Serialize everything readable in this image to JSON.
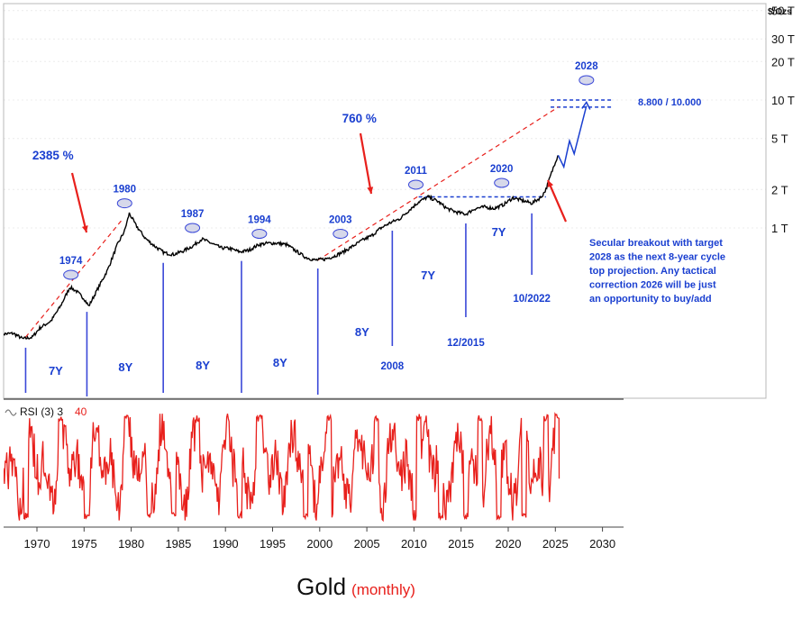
{
  "caption": {
    "title": "Gold",
    "subtitle": "(monthly)"
  },
  "chart_data": {
    "type": "line",
    "title": "Gold (monthly)",
    "unit_label": "$/Ozs",
    "x_ticks": [
      1970,
      1975,
      1980,
      1985,
      1990,
      1995,
      2000,
      2005,
      2010,
      2015,
      2020,
      2025,
      2030
    ],
    "y_scale": "log",
    "y_ticks": [
      {
        "value": 1000,
        "label": "1 T"
      },
      {
        "value": 2000,
        "label": "2 T"
      },
      {
        "value": 5000,
        "label": "5 T"
      },
      {
        "value": 10000,
        "label": "10 T"
      },
      {
        "value": 20000,
        "label": "20 T"
      },
      {
        "value": 30000,
        "label": "30 T"
      },
      {
        "value": 50000,
        "label": "50 T"
      }
    ],
    "price_series": {
      "color": "#000000",
      "points": [
        [
          1966.3,
          148
        ],
        [
          1967.5,
          150
        ],
        [
          1968.5,
          136
        ],
        [
          1969.5,
          140
        ],
        [
          1970.3,
          165
        ],
        [
          1971.5,
          188
        ],
        [
          1972.5,
          245
        ],
        [
          1973.5,
          345
        ],
        [
          1974.2,
          320
        ],
        [
          1975.0,
          280
        ],
        [
          1975.5,
          245
        ],
        [
          1976.5,
          340
        ],
        [
          1977.5,
          470
        ],
        [
          1978.5,
          730
        ],
        [
          1979.3,
          950
        ],
        [
          1979.8,
          1300
        ],
        [
          1980.5,
          1050
        ],
        [
          1981.5,
          830
        ],
        [
          1982.5,
          720
        ],
        [
          1983.5,
          640
        ],
        [
          1984.5,
          620
        ],
        [
          1985.5,
          660
        ],
        [
          1986.5,
          720
        ],
        [
          1987.5,
          820
        ],
        [
          1988.5,
          760
        ],
        [
          1989.5,
          700
        ],
        [
          1990.5,
          690
        ],
        [
          1991.5,
          650
        ],
        [
          1992.5,
          670
        ],
        [
          1993.5,
          740
        ],
        [
          1994.5,
          760
        ],
        [
          1995.5,
          760
        ],
        [
          1996.5,
          740
        ],
        [
          1997.5,
          660
        ],
        [
          1998.5,
          590
        ],
        [
          1999.5,
          560
        ],
        [
          2000.5,
          570
        ],
        [
          2001.5,
          600
        ],
        [
          2002.5,
          650
        ],
        [
          2003.5,
          720
        ],
        [
          2004.5,
          800
        ],
        [
          2005.5,
          870
        ],
        [
          2006.5,
          1000
        ],
        [
          2007.5,
          1100
        ],
        [
          2008.5,
          1180
        ],
        [
          2009.5,
          1380
        ],
        [
          2010.5,
          1600
        ],
        [
          2011.5,
          1750
        ],
        [
          2012.5,
          1620
        ],
        [
          2013.5,
          1420
        ],
        [
          2014.5,
          1330
        ],
        [
          2015.5,
          1280
        ],
        [
          2016.5,
          1420
        ],
        [
          2017.5,
          1460
        ],
        [
          2018.5,
          1420
        ],
        [
          2019.5,
          1520
        ],
        [
          2020.5,
          1720
        ],
        [
          2021.5,
          1640
        ],
        [
          2022.5,
          1560
        ],
        [
          2023.5,
          1740
        ],
        [
          2024.0,
          2000
        ],
        [
          2024.6,
          2700
        ],
        [
          2025.0,
          3300
        ],
        [
          2025.3,
          3700
        ]
      ]
    },
    "projection": {
      "color": "#1a3fd0",
      "points": [
        [
          2025.3,
          3700
        ],
        [
          2025.9,
          3000
        ],
        [
          2026.5,
          4800
        ],
        [
          2027.0,
          3800
        ],
        [
          2028.3,
          9000
        ]
      ]
    },
    "trendlines": [
      {
        "points": [
          [
            1968.8,
            140
          ],
          [
            1979.0,
            1150
          ]
        ]
      },
      {
        "points": [
          [
            1999.8,
            560
          ],
          [
            2025.3,
            8800
          ]
        ]
      }
    ],
    "horizontal_levels": [
      {
        "value": 1750,
        "from": 2010.5,
        "to": 2024.0
      },
      {
        "value": 8800,
        "from": 2024.5,
        "to": 2031.0
      },
      {
        "value": 10000,
        "from": 2024.5,
        "to": 2031.0
      }
    ],
    "level_label": "8.800 / 10.000",
    "cycle_tops": [
      {
        "year": 1974,
        "label": "1974",
        "x": 1973.6,
        "value": 430
      },
      {
        "year": 1980,
        "label": "1980",
        "x": 1979.3,
        "value": 1560
      },
      {
        "year": 1987,
        "label": "1987",
        "x": 1986.5,
        "value": 1000
      },
      {
        "year": 1994,
        "label": "1994",
        "x": 1993.6,
        "value": 900
      },
      {
        "year": 2003,
        "label": "2003",
        "x": 2002.2,
        "value": 900
      },
      {
        "year": 2011,
        "label": "2011",
        "x": 2010.2,
        "value": 2180
      },
      {
        "year": 2020,
        "label": "2020",
        "x": 2019.3,
        "value": 2250
      },
      {
        "year": 2028,
        "label": "2028",
        "x": 2028.3,
        "value": 14300
      }
    ],
    "cycle_lows": [
      {
        "x": 1968.8,
        "label": ""
      },
      {
        "x": 1975.3,
        "label": ""
      },
      {
        "x": 1983.4,
        "label": ""
      },
      {
        "x": 1991.7,
        "label": ""
      },
      {
        "x": 1999.8,
        "label": ""
      },
      {
        "x": 2007.7,
        "label": "2008"
      },
      {
        "x": 2015.5,
        "label": "12/2015"
      },
      {
        "x": 2022.5,
        "label": "10/2022"
      }
    ],
    "cycle_lengths": [
      {
        "label": "7Y",
        "x": 1972.0
      },
      {
        "label": "8Y",
        "x": 1979.4
      },
      {
        "label": "8Y",
        "x": 1987.6
      },
      {
        "label": "8Y",
        "x": 1995.8
      },
      {
        "label": "8Y",
        "x": 2004.5
      },
      {
        "label": "7Y",
        "x": 2011.5
      },
      {
        "label": "7Y",
        "x": 2019.0
      }
    ],
    "percent_labels": [
      {
        "label": "2385 %",
        "x": 1971.7
      },
      {
        "label": "760 %",
        "x": 2004.2
      }
    ],
    "annotation": {
      "lines": [
        "Secular breakout with target",
        "2028 as the next 8-year cycle",
        "top projection. Any tactical",
        "correction 2026 will be just",
        "an opportunity to buy/add"
      ]
    },
    "rsi": {
      "label": "RSI (3) 3",
      "value_label": "40",
      "color": "#e8201c",
      "seed_lows": [
        1968.8,
        1975.3,
        1981.9,
        1984.5,
        1991.5,
        1998.5,
        2001.2,
        2012.8,
        2015.5,
        2019.0,
        2021.7
      ],
      "seed_highs": [
        1972.5,
        1979.5,
        1987.0,
        1993.5,
        2001.0,
        2006.0,
        2010.5,
        2017.0,
        2024.0,
        2025.2
      ],
      "end": [
        2025.4,
        40
      ]
    }
  }
}
